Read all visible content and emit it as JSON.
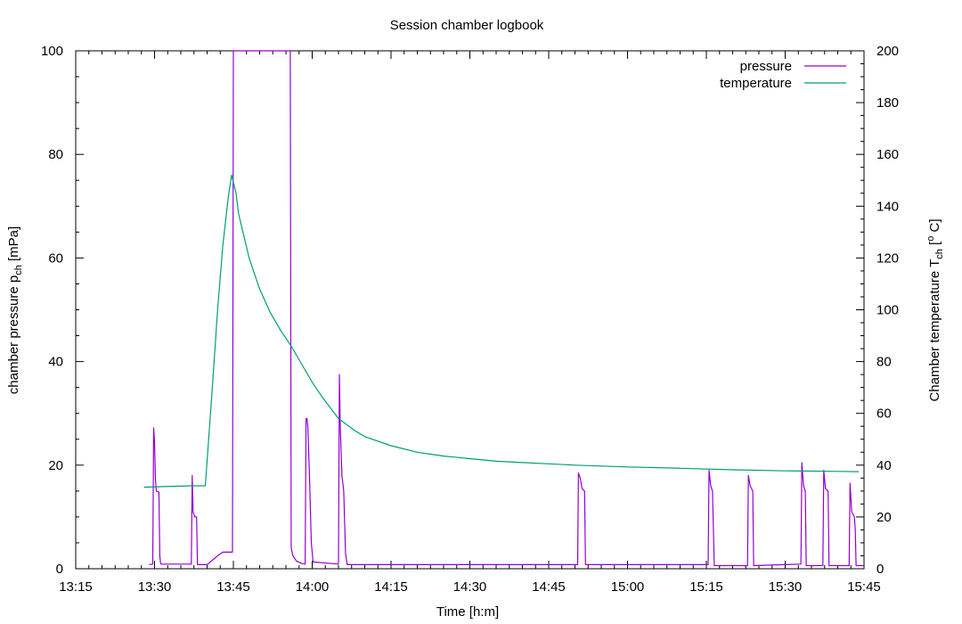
{
  "chart_data": {
    "type": "line",
    "title": "Session chamber logbook",
    "xlabel": "Time [h:m]",
    "ylabel_left": "chamber pressure p",
    "ylabel_left_sub": "ch",
    "ylabel_left_unit": " [mPa]",
    "ylabel_right": "Chamber temperature T",
    "ylabel_right_sub": "ch",
    "ylabel_right_unit_pre": " [",
    "ylabel_right_unit_sup": "o",
    "ylabel_right_unit_post": " C]",
    "xlim": [
      "13:15",
      "15:45"
    ],
    "ylim_left": [
      0,
      100
    ],
    "ylim_right": [
      0,
      200
    ],
    "x_ticks": [
      "13:15",
      "13:30",
      "13:45",
      "14:00",
      "14:15",
      "14:30",
      "14:45",
      "15:00",
      "15:15",
      "15:30",
      "15:45"
    ],
    "y_ticks_left": [
      0,
      20,
      40,
      60,
      80,
      100
    ],
    "y_ticks_right": [
      0,
      20,
      40,
      60,
      80,
      100,
      120,
      140,
      160,
      180,
      200
    ],
    "legend_position": "top-right",
    "series": [
      {
        "name": "pressure",
        "axis": "left",
        "color": "#9400d3",
        "points": [
          [
            "13:29:00",
            0.8
          ],
          [
            "13:29:40",
            0.9
          ],
          [
            "13:29:50",
            27.2
          ],
          [
            "13:30:00",
            24.5
          ],
          [
            "13:30:10",
            17.2
          ],
          [
            "13:30:20",
            15.0
          ],
          [
            "13:30:50",
            14.8
          ],
          [
            "13:31:00",
            2.5
          ],
          [
            "13:31:10",
            0.9
          ],
          [
            "13:37:00",
            0.9
          ],
          [
            "13:37:10",
            18.0
          ],
          [
            "13:37:20",
            11.0
          ],
          [
            "13:37:40",
            10.0
          ],
          [
            "13:38:00",
            10.0
          ],
          [
            "13:38:10",
            0.8
          ],
          [
            "13:40:00",
            0.8
          ],
          [
            "13:42:00",
            2.5
          ],
          [
            "13:43:00",
            3.2
          ],
          [
            "13:44:50",
            3.2
          ],
          [
            "13:45:00",
            100
          ],
          [
            "13:45:10",
            100
          ],
          [
            "13:45:20",
            100
          ],
          [
            "13:55:50",
            100
          ],
          [
            "13:56:00",
            4.0
          ],
          [
            "13:56:20",
            2.5
          ],
          [
            "13:57:00",
            1.5
          ],
          [
            "13:58:00",
            1.0
          ],
          [
            "13:58:40",
            0.9
          ],
          [
            "13:58:50",
            29.0
          ],
          [
            "13:59:00",
            29.0
          ],
          [
            "13:59:10",
            27.5
          ],
          [
            "13:59:30",
            17.0
          ],
          [
            "13:59:50",
            5.0
          ],
          [
            "14:00:10",
            1.3
          ],
          [
            "14:05:00",
            0.9
          ],
          [
            "14:05:10",
            37.5
          ],
          [
            "14:05:20",
            27.5
          ],
          [
            "14:05:40",
            18.0
          ],
          [
            "14:06:00",
            15.0
          ],
          [
            "14:06:20",
            3.0
          ],
          [
            "14:06:40",
            0.8
          ],
          [
            "14:50:30",
            0.8
          ],
          [
            "14:50:40",
            18.5
          ],
          [
            "14:51:00",
            17.5
          ],
          [
            "14:51:20",
            15.5
          ],
          [
            "14:51:50",
            15.0
          ],
          [
            "14:52:00",
            0.8
          ],
          [
            "15:15:20",
            0.8
          ],
          [
            "15:15:30",
            19.0
          ],
          [
            "15:15:50",
            16.0
          ],
          [
            "15:16:10",
            15.0
          ],
          [
            "15:16:30",
            0.6
          ],
          [
            "15:22:50",
            0.6
          ],
          [
            "15:23:00",
            18.0
          ],
          [
            "15:23:20",
            16.0
          ],
          [
            "15:23:50",
            15.0
          ],
          [
            "15:24:00",
            0.6
          ],
          [
            "15:33:00",
            0.9
          ],
          [
            "15:33:10",
            20.5
          ],
          [
            "15:33:30",
            16.0
          ],
          [
            "15:33:50",
            15.0
          ],
          [
            "15:34:00",
            0.6
          ],
          [
            "15:37:10",
            0.6
          ],
          [
            "15:37:20",
            19.0
          ],
          [
            "15:37:40",
            15.5
          ],
          [
            "15:38:10",
            15.0
          ],
          [
            "15:38:20",
            0.6
          ],
          [
            "15:42:10",
            0.6
          ],
          [
            "15:42:20",
            16.5
          ],
          [
            "15:42:40",
            11.0
          ],
          [
            "15:43:10",
            10.0
          ],
          [
            "15:43:20",
            7.5
          ],
          [
            "15:43:30",
            0.6
          ],
          [
            "15:45:00",
            0.6
          ]
        ]
      },
      {
        "name": "temperature",
        "axis": "right",
        "color": "#009e73",
        "points": [
          [
            "13:28:00",
            31.5
          ],
          [
            "13:33:00",
            31.8
          ],
          [
            "13:37:00",
            32.0
          ],
          [
            "13:39:40",
            32.0
          ],
          [
            "13:41:00",
            70.0
          ],
          [
            "13:42:00",
            100.0
          ],
          [
            "13:43:00",
            125.0
          ],
          [
            "13:44:00",
            143.0
          ],
          [
            "13:44:40",
            152.0
          ],
          [
            "13:45:30",
            145.0
          ],
          [
            "13:46:00",
            137.0
          ],
          [
            "13:48:00",
            120.0
          ],
          [
            "13:50:00",
            108.0
          ],
          [
            "13:52:00",
            99.0
          ],
          [
            "13:54:00",
            92.0
          ],
          [
            "13:56:00",
            86.0
          ],
          [
            "13:58:00",
            79.0
          ],
          [
            "14:00:00",
            72.0
          ],
          [
            "14:02:00",
            66.0
          ],
          [
            "14:05:00",
            58.0
          ],
          [
            "14:08:00",
            53.5
          ],
          [
            "14:10:00",
            51.0
          ],
          [
            "14:15:00",
            47.5
          ],
          [
            "14:20:00",
            45.0
          ],
          [
            "14:25:00",
            43.5
          ],
          [
            "14:30:00",
            42.5
          ],
          [
            "14:35:00",
            41.5
          ],
          [
            "14:40:00",
            41.0
          ],
          [
            "14:45:00",
            40.5
          ],
          [
            "14:50:00",
            40.0
          ],
          [
            "15:00:00",
            39.3
          ],
          [
            "15:10:00",
            38.8
          ],
          [
            "15:20:00",
            38.2
          ],
          [
            "15:30:00",
            37.8
          ],
          [
            "15:40:00",
            37.6
          ],
          [
            "15:44:00",
            37.5
          ]
        ]
      }
    ]
  }
}
